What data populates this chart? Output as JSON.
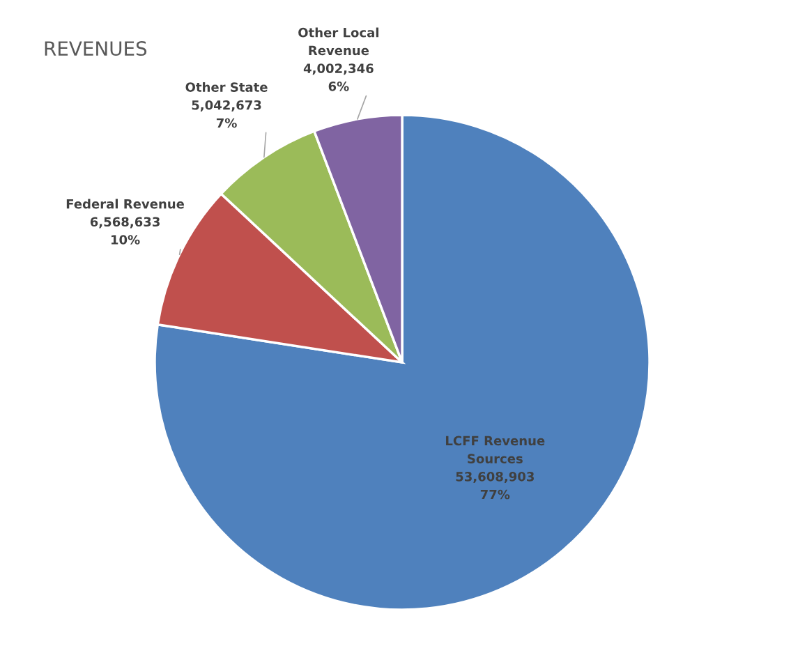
{
  "chart_data": {
    "type": "pie",
    "title": "REVENUES",
    "categories": [
      "LCFF Revenue\nSources",
      "Federal Revenue",
      "Other State",
      "Other Local\nRevenue"
    ],
    "values": [
      53608903,
      6568633,
      5042673,
      4002346
    ],
    "colors": [
      "#4f81bd",
      "#c0504d",
      "#9bbb59",
      "#8064a2"
    ],
    "value_labels": [
      "53,608,903\n77%",
      "6,568,633\n10%",
      "5,042,673\n7%",
      "4,002,346\n6%"
    ]
  }
}
